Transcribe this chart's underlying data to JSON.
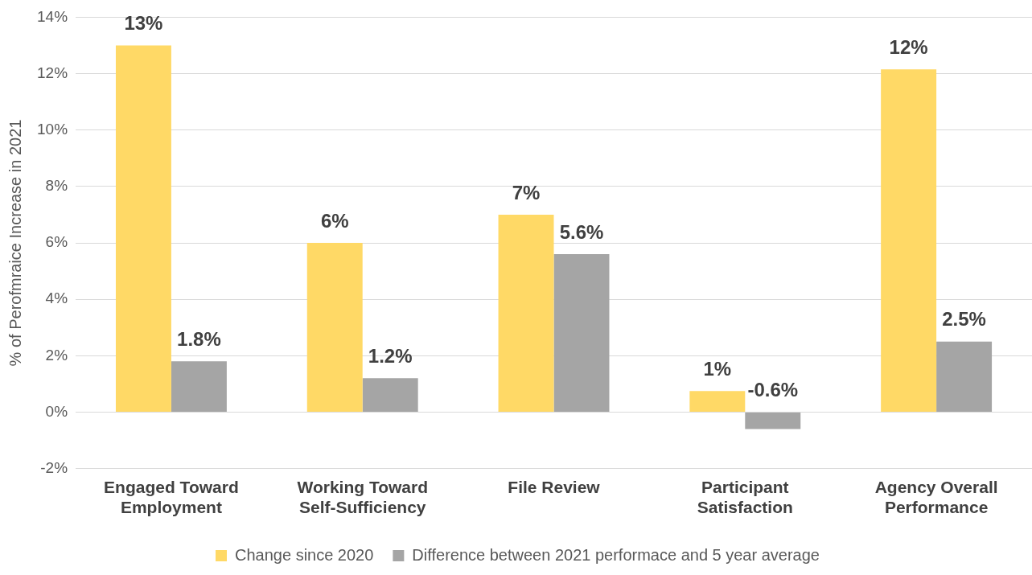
{
  "chart_data": {
    "type": "bar",
    "ylabel": "% of Perofmraice Increase in 2021",
    "categories": [
      "Engaged Toward Employment",
      "Working Toward Self-Sufficiency",
      "File Review",
      "Participant Satisfaction",
      "Agency Overall Performance"
    ],
    "series": [
      {
        "name": "Change since 2020",
        "color": "#ffd966",
        "values": [
          13,
          6,
          7,
          0.75,
          12.15
        ],
        "value_labels": [
          "13%",
          "6%",
          "7%",
          "1%",
          "12%"
        ]
      },
      {
        "name": "Difference between 2021 performace and 5 year average",
        "color": "#a5a5a5",
        "values": [
          1.8,
          1.2,
          5.6,
          -0.6,
          2.5
        ],
        "value_labels": [
          "1.8%",
          "1.2%",
          "5.6%",
          "-0.6%",
          "2.5%"
        ]
      }
    ],
    "ylim": [
      -2,
      14
    ],
    "yticks": [
      {
        "value": -2,
        "label": "-2%"
      },
      {
        "value": 0,
        "label": "0%"
      },
      {
        "value": 2,
        "label": "2%"
      },
      {
        "value": 4,
        "label": "4%"
      },
      {
        "value": 6,
        "label": "6%"
      },
      {
        "value": 8,
        "label": "8%"
      },
      {
        "value": 10,
        "label": "10%"
      },
      {
        "value": 12,
        "label": "12%"
      },
      {
        "value": 14,
        "label": "14%"
      }
    ],
    "grid": "y",
    "legend": "bottom"
  }
}
